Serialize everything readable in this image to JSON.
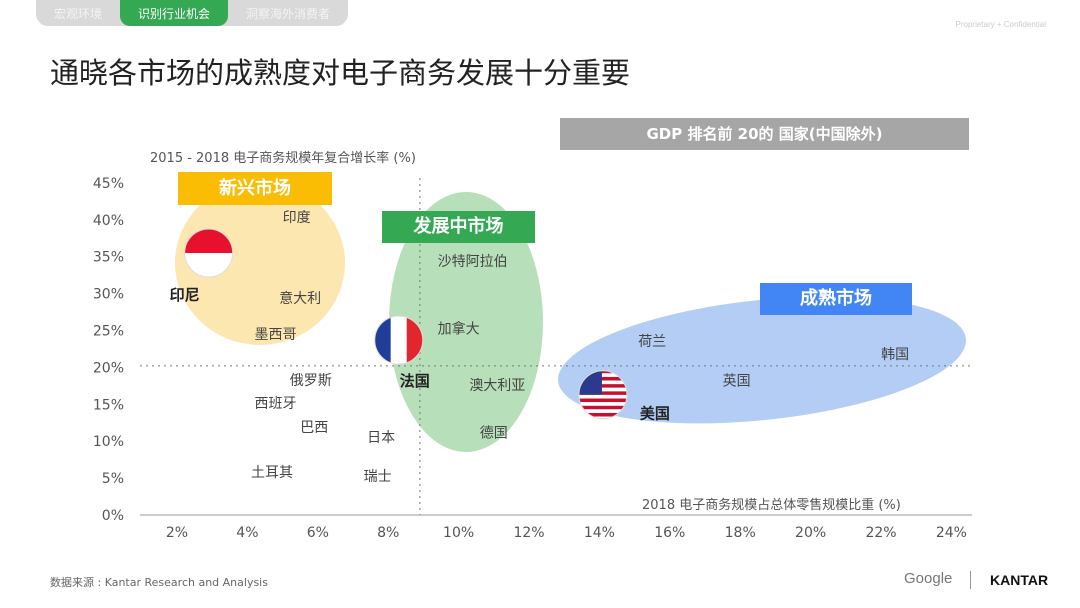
{
  "tabs": [
    "宏观环境",
    "识别行业机会",
    "洞察海外消费者"
  ],
  "confidential": "Proprietary + Confidential",
  "title": "通晓各市场的成熟度对电子商务发展十分重要",
  "gdp_label": "GDP 排名前 20的 国家(中国除外)",
  "source": "数据来源 : Kantar Research and Analysis",
  "logos": {
    "google": "Google",
    "kantar": "KANTAR"
  },
  "chart_data": {
    "type": "scatter",
    "xlabel": "2018 电子商务规模占总体零售规模比重 (%)",
    "ylabel": "2015 - 2018 电子商务规模年复合增长率 (%)",
    "xlim": [
      0,
      25
    ],
    "ylim": [
      0,
      45
    ],
    "xticks": [
      "2%",
      "4%",
      "6%",
      "8%",
      "10%",
      "12%",
      "14%",
      "16%",
      "18%",
      "20%",
      "22%",
      "24%"
    ],
    "xtick_values": [
      2,
      4,
      6,
      8,
      10,
      12,
      14,
      16,
      18,
      20,
      22,
      24
    ],
    "yticks": [
      "0%",
      "5%",
      "10%",
      "15%",
      "20%",
      "25%",
      "30%",
      "35%",
      "40%",
      "45%"
    ],
    "ytick_values": [
      0,
      5,
      10,
      15,
      20,
      25,
      30,
      35,
      40,
      45
    ],
    "reference_lines": {
      "x": 8.9,
      "y": 20.2
    },
    "groups": [
      {
        "name": "新兴市场",
        "color": "#fbbc04",
        "fill": "#fde7b0"
      },
      {
        "name": "发展中市场",
        "color": "#34a853",
        "fill": "#b7dfb9"
      },
      {
        "name": "成熟市场",
        "color": "#4285f4",
        "fill": "#b3cdf5"
      }
    ],
    "points": [
      {
        "name": "印度",
        "x": 5.4,
        "y": 40.4
      },
      {
        "name": "印尼",
        "x": 2.9,
        "y": 35.5,
        "flag": "id",
        "bold": true
      },
      {
        "name": "意大利",
        "x": 5.5,
        "y": 29.4
      },
      {
        "name": "墨西哥",
        "x": 4.8,
        "y": 24.5
      },
      {
        "name": "俄罗斯",
        "x": 5.8,
        "y": 18.3
      },
      {
        "name": "西班牙",
        "x": 4.8,
        "y": 15.2
      },
      {
        "name": "巴西",
        "x": 5.9,
        "y": 11.9
      },
      {
        "name": "土耳其",
        "x": 4.7,
        "y": 5.8
      },
      {
        "name": "日本",
        "x": 7.8,
        "y": 10.6
      },
      {
        "name": "瑞士",
        "x": 7.7,
        "y": 5.3
      },
      {
        "name": "法国",
        "x": 8.3,
        "y": 23.7,
        "flag": "fr",
        "bold": true
      },
      {
        "name": "沙特阿拉伯",
        "x": 10.4,
        "y": 34.4
      },
      {
        "name": "加拿大",
        "x": 10.0,
        "y": 25.3
      },
      {
        "name": "澳大利亚",
        "x": 11.1,
        "y": 17.6
      },
      {
        "name": "德国",
        "x": 11.0,
        "y": 11.2
      },
      {
        "name": "美国",
        "x": 14.1,
        "y": 16.3,
        "flag": "us",
        "bold": true
      },
      {
        "name": "荷兰",
        "x": 15.5,
        "y": 23.6
      },
      {
        "name": "英国",
        "x": 17.9,
        "y": 18.2
      },
      {
        "name": "韩国",
        "x": 22.4,
        "y": 21.8
      }
    ]
  }
}
